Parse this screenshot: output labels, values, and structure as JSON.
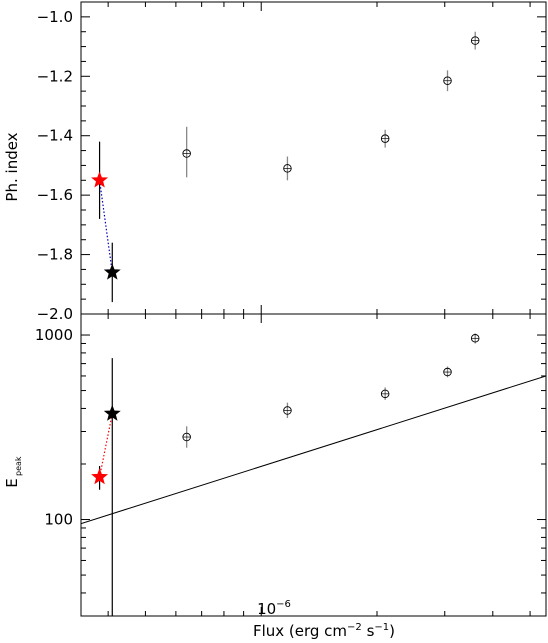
{
  "chart_data": [
    {
      "type": "scatter",
      "ylabel": "Ph. index",
      "ylim": [
        -2.0,
        -0.95
      ],
      "yticks": [
        -1.0,
        -1.2,
        -1.4,
        -1.6,
        -1.8,
        -2.0
      ],
      "ytick_labels": [
        "−1.0",
        "−1.2",
        "−1.4",
        "−1.6",
        "−1.8",
        "−2.0"
      ],
      "x_scale": "log",
      "xlim": [
        3.4e-07,
        5.5e-06
      ],
      "points": [
        {
          "x": 6.4e-07,
          "y": -1.46,
          "yerr": [
            0.08,
            0.09
          ],
          "marker": "circle",
          "color": "#000000"
        },
        {
          "x": 1.17e-06,
          "y": -1.51,
          "yerr": [
            0.04,
            0.04
          ],
          "marker": "circle",
          "color": "#000000"
        },
        {
          "x": 2.1e-06,
          "y": -1.41,
          "yerr": [
            0.03,
            0.03
          ],
          "marker": "circle",
          "color": "#000000"
        },
        {
          "x": 3.05e-06,
          "y": -1.215,
          "yerr": [
            0.035,
            0.035
          ],
          "marker": "circle",
          "color": "#000000"
        },
        {
          "x": 3.6e-06,
          "y": -1.08,
          "yerr": [
            0.03,
            0.03
          ],
          "marker": "circle",
          "color": "#000000"
        },
        {
          "x": 3.8e-07,
          "y": -1.55,
          "yerr": [
            0.13,
            0.13
          ],
          "marker": "star",
          "color": "#ff0000"
        },
        {
          "x": 4.1e-07,
          "y": -1.86,
          "yerr": [
            0.1,
            0.1
          ],
          "marker": "star",
          "color": "#000000"
        }
      ],
      "connector": {
        "from": 5,
        "to": 6,
        "style": "dotted",
        "color": "#0000bb"
      }
    },
    {
      "type": "scatter",
      "ylabel": "E",
      "ylabel_sub": "peak",
      "y_scale": "log",
      "ylim": [
        30,
        1300
      ],
      "yticks": [
        100,
        1000
      ],
      "ytick_labels": [
        "100",
        "1000"
      ],
      "x_scale": "log",
      "xlim": [
        3.4e-07,
        5.5e-06
      ],
      "xticks": [
        1e-06
      ],
      "xtick_labels": [
        "10",
        "−6"
      ],
      "xlabel": "Flux (erg cm",
      "xlabel_parts": [
        "Flux (erg cm",
        "−2",
        " s",
        "−1",
        ")"
      ],
      "points": [
        {
          "x": 6.4e-07,
          "y": 280,
          "yerr": [
            35,
            40
          ],
          "marker": "circle",
          "color": "#000000"
        },
        {
          "x": 1.17e-06,
          "y": 390,
          "yerr": [
            35,
            40
          ],
          "marker": "circle",
          "color": "#000000"
        },
        {
          "x": 2.1e-06,
          "y": 480,
          "yerr": [
            35,
            40
          ],
          "marker": "circle",
          "color": "#000000"
        },
        {
          "x": 3.05e-06,
          "y": 630,
          "yerr": [
            40,
            45
          ],
          "marker": "circle",
          "color": "#000000"
        },
        {
          "x": 3.6e-06,
          "y": 960,
          "yerr": [
            60,
            60
          ],
          "marker": "circle",
          "color": "#000000"
        },
        {
          "x": 3.8e-07,
          "y": 170,
          "yerr": [
            25,
            25
          ],
          "marker": "star",
          "color": "#ff0000"
        },
        {
          "x": 4.1e-07,
          "y": 375,
          "yerr": [
            345,
            375
          ],
          "marker": "star",
          "color": "#000000"
        }
      ],
      "connector": {
        "from": 5,
        "to": 6,
        "style": "dotted",
        "color": "#ff0000"
      },
      "line": {
        "x": [
          3.4e-07,
          5.5e-06
        ],
        "y": [
          95,
          600
        ],
        "style": "solid",
        "color": "#000000"
      }
    }
  ]
}
